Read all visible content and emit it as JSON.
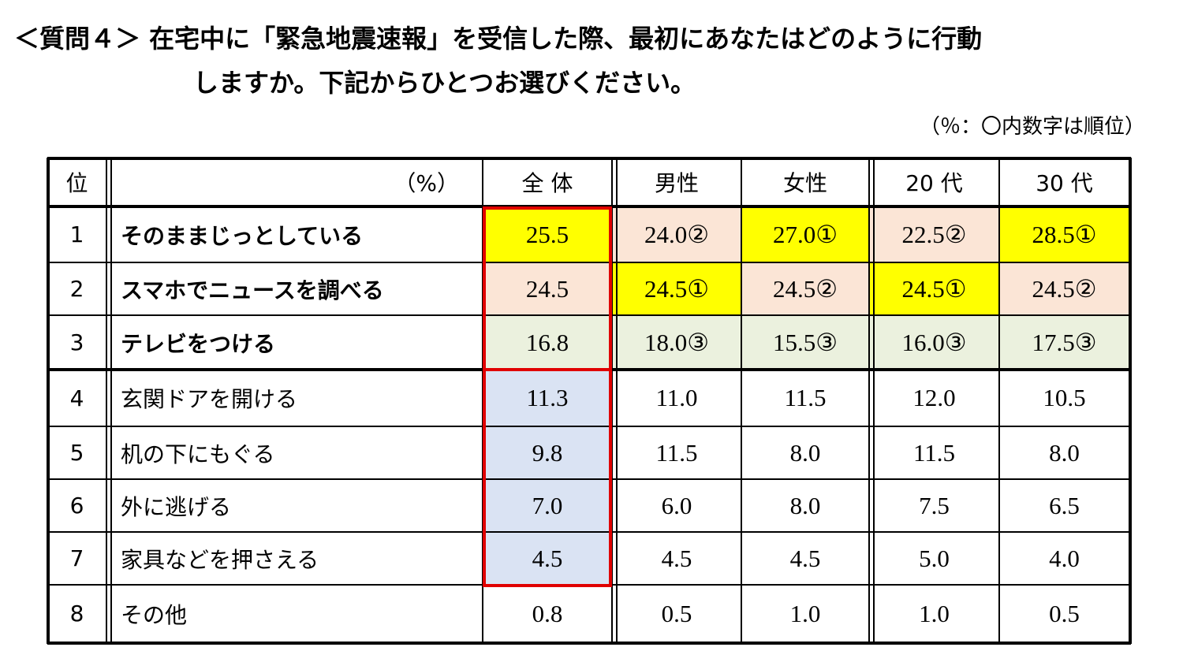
{
  "header": {
    "title_line1": "＜質問４＞ 在宅中に「緊急地震速報」を受信した際、最初にあなたはどのように行動",
    "title_line2": "しますか。下記からひとつお選びください。",
    "note": "（％：〇内数字は順位）"
  },
  "table": {
    "columns": [
      "位",
      "（%）",
      "全 体",
      "男性",
      "女性",
      "20 代",
      "30 代"
    ],
    "rows": [
      [
        "1",
        "そのままじっとしている",
        "25.5",
        "24.0②",
        "27.0①",
        "22.5②",
        "28.5①"
      ],
      [
        "2",
        "スマホでニュースを調べる",
        "24.5",
        "24.5①",
        "24.5②",
        "24.5①",
        "24.5②"
      ],
      [
        "3",
        "テレビをつける",
        "16.8",
        "18.0③",
        "15.5③",
        "16.0③",
        "17.5③"
      ],
      [
        "4",
        "玄関ドアを開ける",
        "11.3",
        "11.0",
        "11.5",
        "12.0",
        "10.5"
      ],
      [
        "5",
        "机の下にもぐる",
        "9.8",
        "11.5",
        "8.0",
        "11.5",
        "8.0"
      ],
      [
        "6",
        "外に逃げる",
        "7.0",
        "6.0",
        "8.0",
        "7.5",
        "6.5"
      ],
      [
        "7",
        "家具などを押さえる",
        "4.5",
        "4.5",
        "4.5",
        "5.0",
        "4.0"
      ],
      [
        "8",
        "その他",
        "0.8",
        "0.5",
        "1.0",
        "1.0",
        "0.5"
      ]
    ]
  }
}
